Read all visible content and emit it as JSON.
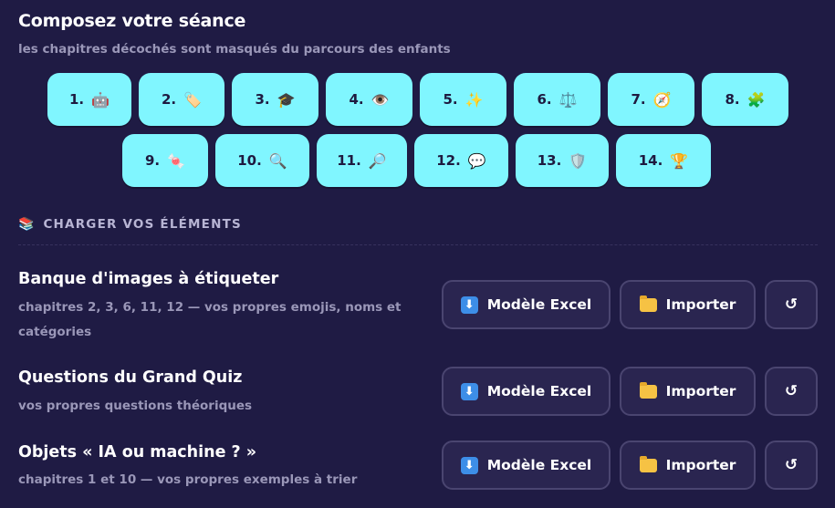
{
  "header": {
    "title": "Composez votre séance",
    "subtitle": "les chapitres décochés sont masqués du parcours des enfants"
  },
  "chapters": [
    {
      "num": "1.",
      "icon": "🤖",
      "icon_name": "robot-icon"
    },
    {
      "num": "2.",
      "icon": "🏷️",
      "icon_name": "label-tag-icon"
    },
    {
      "num": "3.",
      "icon": "🎓",
      "icon_name": "graduation-cap-icon"
    },
    {
      "num": "4.",
      "icon": "👁️",
      "icon_name": "eye-icon"
    },
    {
      "num": "5.",
      "icon": "✨",
      "icon_name": "sparkles-icon"
    },
    {
      "num": "6.",
      "icon": "⚖️",
      "icon_name": "balance-scale-icon"
    },
    {
      "num": "7.",
      "icon": "🧭",
      "icon_name": "compass-icon"
    },
    {
      "num": "8.",
      "icon": "🧩",
      "icon_name": "puzzle-piece-icon"
    },
    {
      "num": "9.",
      "icon": "🍬",
      "icon_name": "candy-icon"
    },
    {
      "num": "10.",
      "icon": "🔍",
      "icon_name": "magnifier-left-icon"
    },
    {
      "num": "11.",
      "icon": "🔎",
      "icon_name": "magnifier-right-icon"
    },
    {
      "num": "12.",
      "icon": "💬",
      "icon_name": "speech-bubble-icon"
    },
    {
      "num": "13.",
      "icon": "🛡️",
      "icon_name": "shield-icon"
    },
    {
      "num": "14.",
      "icon": "🏆",
      "icon_name": "trophy-icon"
    }
  ],
  "section": {
    "icon": "📚",
    "label": "CHARGER VOS ÉLÉMENTS"
  },
  "buttons": {
    "excel_label": "Modèle Excel",
    "import_label": "Importer",
    "reset_label": "↺"
  },
  "rows": [
    {
      "title": "Banque d'images à étiqueter",
      "desc": "chapitres 2, 3, 6, 11, 12 — vos propres emojis, noms et catégories"
    },
    {
      "title": "Questions du Grand Quiz",
      "desc": "vos propres questions théoriques"
    },
    {
      "title": "Objets « IA ou machine ? »",
      "desc": "chapitres 1 et 10 — vos propres exemples à trier"
    }
  ],
  "colors": {
    "background": "#1f1b44",
    "chip": "#80f6ff",
    "button": "#2a2550",
    "button_border": "#4a4570",
    "muted_text": "#9a97b8"
  }
}
